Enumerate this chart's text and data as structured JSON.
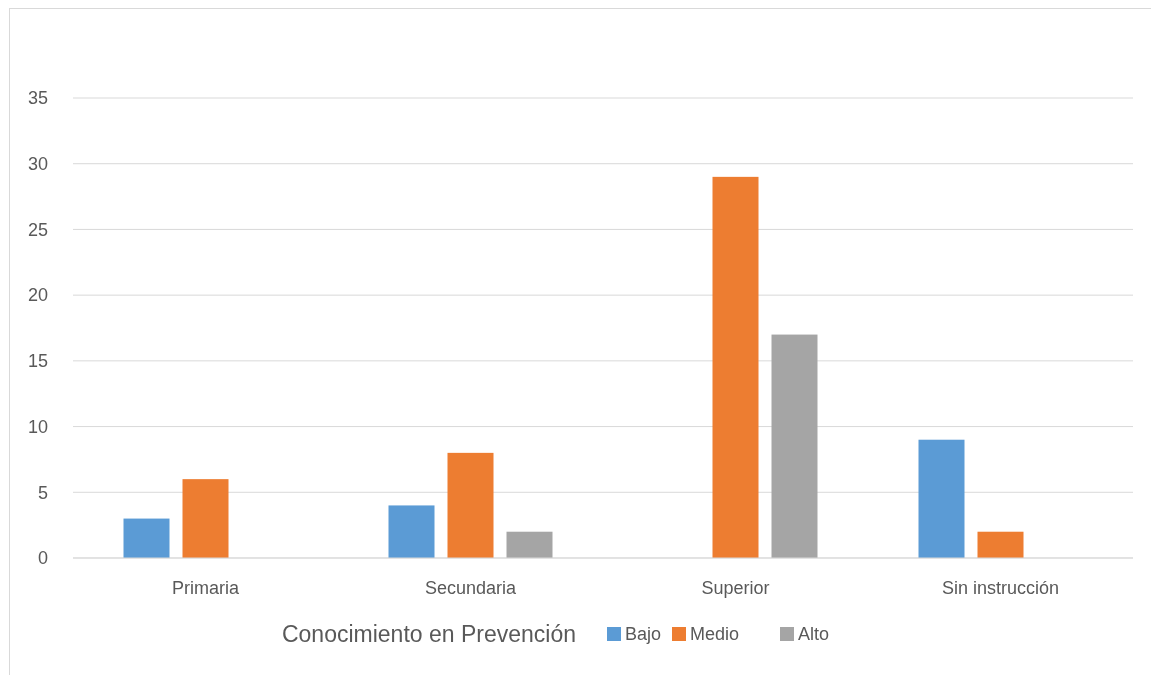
{
  "chart_data": {
    "type": "bar",
    "categories": [
      "Primaria",
      "Secundaria",
      "Superior",
      "Sin instrucción"
    ],
    "series": [
      {
        "name": "Bajo",
        "color": "#5b9bd5",
        "values": [
          3,
          4,
          0,
          9
        ]
      },
      {
        "name": "Medio",
        "color": "#ed7d31",
        "values": [
          6,
          8,
          29,
          2
        ]
      },
      {
        "name": "Alto",
        "color": "#a5a5a5",
        "values": [
          0,
          2,
          17,
          0
        ]
      }
    ],
    "ylim": [
      0,
      35
    ],
    "yticks": [
      0,
      5,
      10,
      15,
      20,
      25,
      30,
      35
    ],
    "grid": "y",
    "legend": "bottom",
    "legend_title": "Conocimiento en Prevención"
  }
}
